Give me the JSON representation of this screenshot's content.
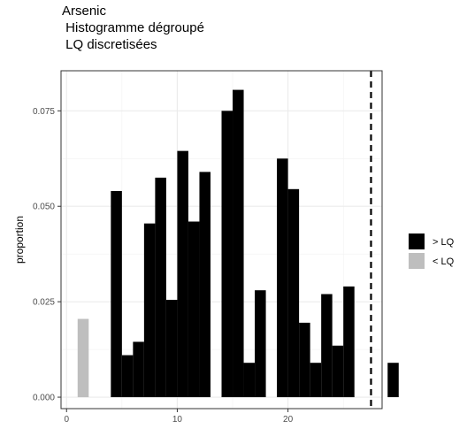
{
  "chart_data": {
    "type": "bar",
    "title": "Arsenic",
    "subtitle_lines": [
      " Histogramme dégroupé",
      " LQ discretisées"
    ],
    "xlabel": "",
    "ylabel": "proportion",
    "xlim": [
      -0.5,
      28.5
    ],
    "ylim": [
      -0.003,
      0.0855
    ],
    "x_ticks": [
      0,
      10,
      20
    ],
    "y_ticks": [
      0.0,
      0.025,
      0.05,
      0.075
    ],
    "x_tick_labels": [
      "0",
      "10",
      "20"
    ],
    "y_tick_labels": [
      "0.000",
      "0.025",
      "0.050",
      "0.075"
    ],
    "grid": true,
    "legend_position": "right",
    "vline": {
      "x": 27.5,
      "style": "dashed"
    },
    "series": [
      {
        "name": "> LQ",
        "color": "#000000",
        "bars": [
          {
            "x0": 4,
            "x1": 5,
            "y": 0.054
          },
          {
            "x0": 5,
            "x1": 6,
            "y": 0.011
          },
          {
            "x0": 6,
            "x1": 7,
            "y": 0.0145
          },
          {
            "x0": 7,
            "x1": 8,
            "y": 0.0455
          },
          {
            "x0": 8,
            "x1": 9,
            "y": 0.0575
          },
          {
            "x0": 9,
            "x1": 10,
            "y": 0.0255
          },
          {
            "x0": 10,
            "x1": 11,
            "y": 0.0645
          },
          {
            "x0": 11,
            "x1": 12,
            "y": 0.046
          },
          {
            "x0": 12,
            "x1": 13,
            "y": 0.059
          },
          {
            "x0": 14,
            "x1": 15,
            "y": 0.075
          },
          {
            "x0": 15,
            "x1": 16,
            "y": 0.0805
          },
          {
            "x0": 16,
            "x1": 17,
            "y": 0.009
          },
          {
            "x0": 17,
            "x1": 18,
            "y": 0.028
          },
          {
            "x0": 19,
            "x1": 20,
            "y": 0.0625
          },
          {
            "x0": 20,
            "x1": 21,
            "y": 0.0545
          },
          {
            "x0": 21,
            "x1": 22,
            "y": 0.0195
          },
          {
            "x0": 22,
            "x1": 23,
            "y": 0.009
          },
          {
            "x0": 23,
            "x1": 24,
            "y": 0.027
          },
          {
            "x0": 24,
            "x1": 25,
            "y": 0.0135
          },
          {
            "x0": 25,
            "x1": 26,
            "y": 0.029
          },
          {
            "x0": 29,
            "x1": 30,
            "y": 0.009
          }
        ]
      },
      {
        "name": "< LQ",
        "color": "#bebebe",
        "bars": [
          {
            "x0": 1,
            "x1": 2,
            "y": 0.0205
          }
        ]
      }
    ]
  }
}
